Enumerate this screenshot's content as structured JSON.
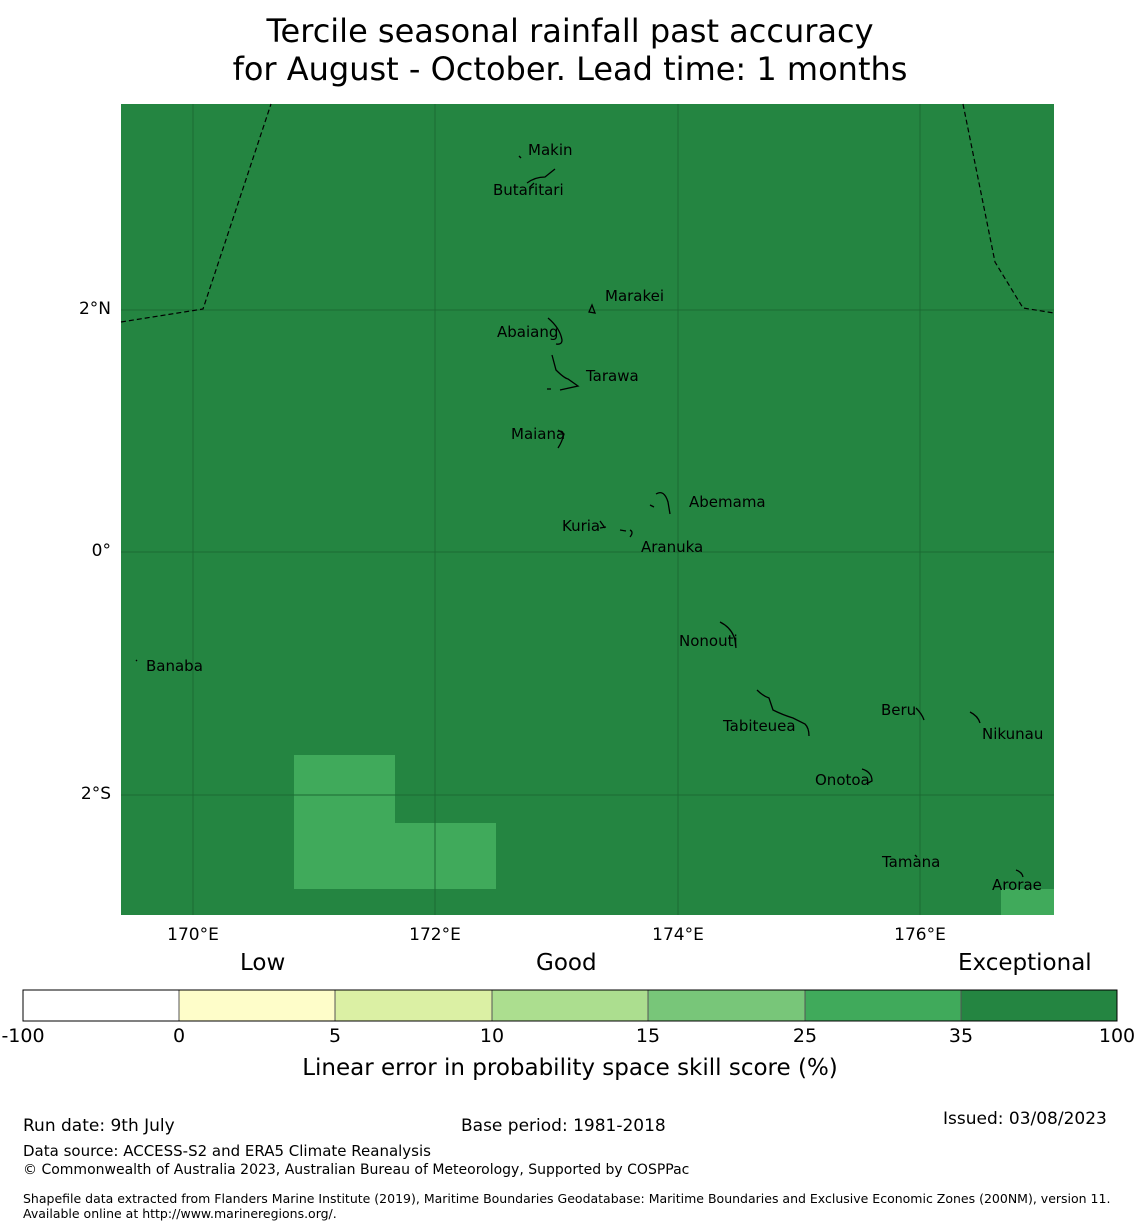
{
  "title": {
    "line1": "Tercile seasonal rainfall past accuracy",
    "line2": "for August - October. Lead time: 1 months"
  },
  "map": {
    "background_color": "#248541",
    "lat_labels": [
      "2°N",
      "0°",
      "2°S"
    ],
    "lon_labels": [
      "170°E",
      "172°E",
      "174°E",
      "176°E"
    ],
    "places": [
      {
        "name": "Makin"
      },
      {
        "name": "Butaritari"
      },
      {
        "name": "Marakei"
      },
      {
        "name": "Abaiang"
      },
      {
        "name": "Tarawa"
      },
      {
        "name": "Maiana"
      },
      {
        "name": "Abemama"
      },
      {
        "name": "Kuria"
      },
      {
        "name": "Aranuka"
      },
      {
        "name": "Nonouti"
      },
      {
        "name": "Banaba"
      },
      {
        "name": "Beru"
      },
      {
        "name": "Tabiteuea"
      },
      {
        "name": "Nikunau"
      },
      {
        "name": "Onotoa"
      },
      {
        "name": "Tamana"
      },
      {
        "name": "Arorae"
      }
    ]
  },
  "colorbar": {
    "categories": [
      "Low",
      "Good",
      "Exceptional"
    ],
    "ticks": [
      "-100",
      "0",
      "5",
      "10",
      "15",
      "25",
      "35",
      "100"
    ],
    "colors": [
      "#ffffff",
      "#fefdc9",
      "#dbf0a4",
      "#acde8f",
      "#78c679",
      "#40aa5b",
      "#248541"
    ],
    "label": "Linear error in probability space skill score (%)"
  },
  "footer": {
    "run_date": "Run date: 9th July",
    "base_period": "Base period: 1981-2018",
    "issued": "Issued: 03/08/2023",
    "data_source": "Data source: ACCESS-S2 and ERA5 Climate Reanalysis",
    "copyright": "© Commonwealth of Australia 2023, Australian Bureau of Meteorology, Supported by COSPPac",
    "shapefile": "Shapefile data extracted from Flanders Marine Institute (2019), Maritime Boundaries Geodatabase: Maritime Boundaries and Exclusive Economic Zones (200NM), version 11. Available online at http://www.marineregions.org/."
  }
}
